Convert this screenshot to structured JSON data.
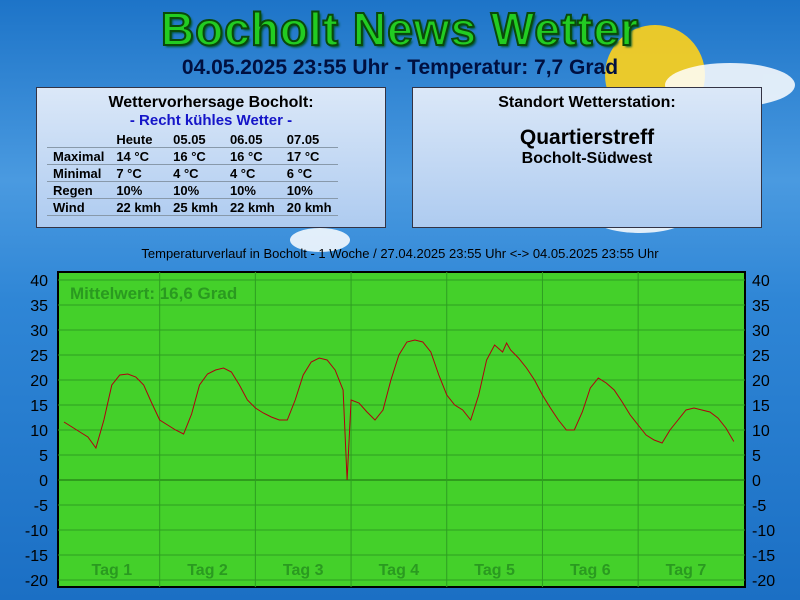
{
  "header": {
    "title": "Bocholt News Wetter",
    "subtitle": "04.05.2025 23:55 Uhr - Temperatur: 7,7 Grad"
  },
  "forecast": {
    "title": "Wettervorhersage Bocholt:",
    "subtitle": "- Recht kühles Wetter -",
    "columns": [
      "Heute",
      "05.05",
      "06.05",
      "07.05"
    ],
    "rows": [
      [
        "Maximal",
        "14 °C",
        "16 °C",
        "16 °C",
        "17 °C"
      ],
      [
        "Minimal",
        "7 °C",
        "4 °C",
        "4 °C",
        "6 °C"
      ],
      [
        "Regen",
        "10%",
        "10%",
        "10%",
        "10%"
      ],
      [
        "Wind",
        "22 kmh",
        "25 kmh",
        "22 kmh",
        "20 kmh"
      ]
    ]
  },
  "station": {
    "title": "Standort Wetterstation:",
    "name": "Quartierstreff",
    "location": "Bocholt-Südwest"
  },
  "chart_data": {
    "type": "line",
    "title": "Temperaturverlauf in Bocholt - 1 Woche / 27.04.2025 23:55 Uhr <-> 04.05.2025 23:55 Uhr",
    "annotation": "Mittelwert: 16,6 Grad",
    "x": [
      0,
      2,
      4,
      6,
      8,
      10,
      12,
      14,
      16,
      18,
      20,
      22,
      24,
      26,
      28,
      30,
      32,
      34,
      36,
      38,
      40,
      42,
      44,
      46,
      48,
      50,
      52,
      54,
      56,
      58,
      60,
      62,
      64,
      66,
      68,
      70,
      71,
      72,
      74,
      76,
      78,
      80,
      82,
      84,
      86,
      88,
      90,
      92,
      94,
      96,
      98,
      100,
      102,
      104,
      106,
      108,
      110,
      111,
      112,
      114,
      116,
      118,
      120,
      122,
      124,
      126,
      128,
      130,
      132,
      134,
      136,
      138,
      140,
      142,
      144,
      146,
      148,
      150,
      152,
      154,
      156,
      158,
      160,
      162,
      164,
      166,
      168
    ],
    "series": [
      {
        "name": "Temperatur",
        "color": "#b00010",
        "values": [
          11.6,
          10.6,
          9.6,
          8.6,
          6.4,
          12,
          19,
          21,
          21.2,
          20.6,
          19,
          15.4,
          12,
          11,
          10,
          9.2,
          13.2,
          19,
          21.2,
          22,
          22.4,
          21.6,
          19,
          16,
          14.4,
          13.4,
          12.6,
          12,
          12,
          16,
          21,
          23.6,
          24.4,
          24,
          22,
          18,
          0,
          16,
          15.4,
          13.6,
          12,
          14,
          20,
          25,
          27.6,
          28,
          27.6,
          25.6,
          21,
          17,
          15,
          14,
          12,
          17,
          24,
          27,
          25.6,
          27.4,
          26,
          24.4,
          22.4,
          20,
          17,
          14.4,
          12,
          10,
          10,
          13.6,
          18.4,
          20.4,
          19.4,
          18,
          15.6,
          13,
          11,
          9,
          8,
          7.4,
          10,
          12,
          14,
          14.4,
          14,
          13.6,
          12.4,
          10.4,
          7.7
        ]
      }
    ],
    "xlim": [
      -1.5,
      170.8
    ],
    "xticks": [
      {
        "value": 12,
        "label": "Tag 1"
      },
      {
        "value": 36,
        "label": "Tag 2"
      },
      {
        "value": 60,
        "label": "Tag 3"
      },
      {
        "value": 84,
        "label": "Tag 4"
      },
      {
        "value": 108,
        "label": "Tag 5"
      },
      {
        "value": 132,
        "label": "Tag 6"
      },
      {
        "value": 156,
        "label": "Tag 7"
      }
    ],
    "x_gridlines": [
      24,
      48,
      72,
      96,
      120,
      144
    ],
    "ylim": [
      -21.4,
      41.6
    ],
    "yticks": [
      -20,
      -15,
      -10,
      -5,
      0,
      5,
      10,
      15,
      20,
      25,
      30,
      35,
      40
    ],
    "grid": true,
    "background": "#44d02a"
  }
}
